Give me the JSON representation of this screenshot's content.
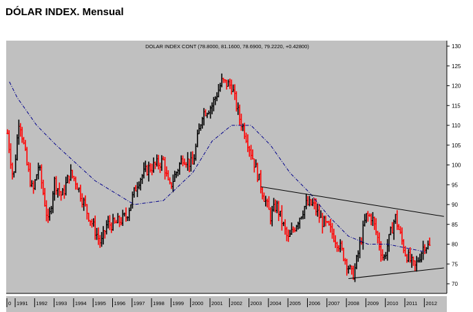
{
  "title": "DÓLAR INDEX. Mensual",
  "chart_data": {
    "type": "candlestick",
    "title": "DOLAR INDEX CONT (78.8000, 81.1600, 78.6900, 79.2220, +0.42800)",
    "xlabel": "",
    "ylabel": "",
    "ylim": [
      67,
      131
    ],
    "xlim": [
      1990.5,
      2013.1
    ],
    "yticks": [
      70,
      75,
      80,
      85,
      90,
      95,
      100,
      105,
      110,
      115,
      120,
      125,
      130
    ],
    "xticks": [
      "0",
      "1991",
      "1992",
      "1993",
      "1994",
      "1995",
      "1996",
      "1997",
      "1998",
      "1999",
      "2000",
      "2001",
      "2002",
      "2003",
      "2004",
      "2005",
      "2006",
      "2007",
      "2008",
      "2009",
      "2010",
      "2011",
      "2012"
    ],
    "price_path": [
      [
        1990.5,
        108
      ],
      [
        1990.8,
        96
      ],
      [
        1991.1,
        112
      ],
      [
        1991.5,
        100
      ],
      [
        1991.8,
        93
      ],
      [
        1992.1,
        100
      ],
      [
        1992.6,
        85
      ],
      [
        1992.9,
        96
      ],
      [
        1993.3,
        92
      ],
      [
        1993.7,
        98
      ],
      [
        1994.0,
        96
      ],
      [
        1994.6,
        88
      ],
      [
        1995.3,
        80
      ],
      [
        1995.6,
        85
      ],
      [
        1996.0,
        85
      ],
      [
        1996.6,
        87
      ],
      [
        1997.2,
        96
      ],
      [
        1997.7,
        99
      ],
      [
        1998.5,
        101
      ],
      [
        1998.8,
        94
      ],
      [
        1999.5,
        102
      ],
      [
        2000.0,
        100
      ],
      [
        2000.5,
        113
      ],
      [
        2001.0,
        115
      ],
      [
        2001.5,
        121
      ],
      [
        2002.0,
        120
      ],
      [
        2002.4,
        112
      ],
      [
        2002.7,
        108
      ],
      [
        2003.2,
        100
      ],
      [
        2003.6,
        93
      ],
      [
        2004.0,
        87
      ],
      [
        2004.3,
        90
      ],
      [
        2004.9,
        81
      ],
      [
        2005.8,
        90
      ],
      [
        2006.2,
        90
      ],
      [
        2006.6,
        86
      ],
      [
        2007.0,
        84
      ],
      [
        2007.5,
        80
      ],
      [
        2008.2,
        72
      ],
      [
        2008.3,
        73
      ],
      [
        2008.9,
        87
      ],
      [
        2009.2,
        87
      ],
      [
        2009.8,
        76
      ],
      [
        2010.4,
        87
      ],
      [
        2010.9,
        78
      ],
      [
        2011.4,
        74
      ],
      [
        2011.9,
        80
      ],
      [
        2012.2,
        79.2
      ]
    ],
    "moving_average": [
      [
        1990.6,
        121
      ],
      [
        1991,
        117
      ],
      [
        1992,
        110
      ],
      [
        1993,
        105
      ],
      [
        1995,
        96
      ],
      [
        1997,
        90
      ],
      [
        1998.5,
        91
      ],
      [
        2000,
        98
      ],
      [
        2001,
        106
      ],
      [
        2002,
        110
      ],
      [
        2003,
        110
      ],
      [
        2004,
        105
      ],
      [
        2005,
        98
      ],
      [
        2006,
        93
      ],
      [
        2007,
        87
      ],
      [
        2008,
        82
      ],
      [
        2009,
        80
      ],
      [
        2010,
        80
      ],
      [
        2011,
        79
      ],
      [
        2012,
        78
      ]
    ],
    "trendlines": [
      {
        "name": "resistance",
        "points": [
          [
            2003.5,
            94.5
          ],
          [
            2012.9,
            87
          ]
        ]
      },
      {
        "name": "support",
        "points": [
          [
            2008.0,
            71.3
          ],
          [
            2012.9,
            74
          ]
        ]
      }
    ],
    "colors": {
      "up": "#000000",
      "down": "#ff0000",
      "ma": "#00008b",
      "background": "#c0c0c0"
    }
  }
}
